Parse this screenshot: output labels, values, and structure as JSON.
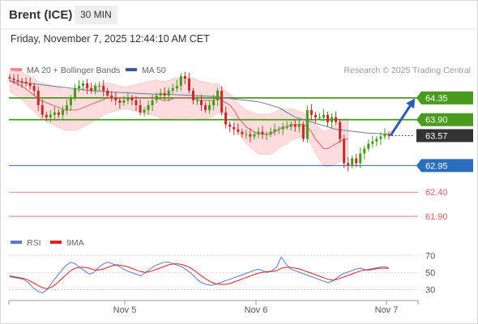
{
  "header": {
    "instrument": "Brent (ICE)",
    "interval": "30 MIN",
    "datetime": "Friday, November 7, 2025 12:44:10 AM CET"
  },
  "legend": {
    "bollinger_label": "MA 20 + Bollinger Bands",
    "ma50_label": "MA 50",
    "credit": "Research © 2025 Trading Central"
  },
  "rsi_legend": {
    "rsi_label": "RSI",
    "ma_label": "9MA"
  },
  "colors": {
    "up_candle": "#4a9a1e",
    "down_candle": "#c03030",
    "ma20": "#e06060",
    "ma50": "#6a7aa8",
    "bollinger_fill": "#fbd6d6",
    "resistance": "#4a9a1e",
    "pivot": "#2a6ebb",
    "support": "#e06060",
    "current_price": "#333333",
    "rsi": "#5a7ad6",
    "rsi_ma": "#dd2222"
  },
  "chart_data": [
    {
      "type": "candlestick",
      "title": "Brent (ICE)",
      "y_range": [
        61.65,
        64.75
      ],
      "x_labels": [
        "Nov 5",
        "Nov 6",
        "Nov 7"
      ],
      "levels": [
        {
          "value": 64.35,
          "label": "64.35",
          "kind": "resistance"
        },
        {
          "value": 63.9,
          "label": "63.90",
          "kind": "resistance"
        },
        {
          "value": 63.57,
          "label": "63.57",
          "kind": "current"
        },
        {
          "value": 62.95,
          "label": "62.95",
          "kind": "pivot"
        },
        {
          "value": 62.4,
          "label": "62.40",
          "kind": "support"
        },
        {
          "value": 61.9,
          "label": "61.90",
          "kind": "support"
        }
      ],
      "forecast_target": 64.35,
      "closes": [
        64.75,
        64.72,
        64.7,
        64.68,
        64.65,
        64.6,
        64.5,
        64.2,
        64.0,
        63.95,
        64.0,
        64.05,
        64.0,
        64.1,
        64.2,
        64.35,
        64.55,
        64.6,
        64.65,
        64.55,
        64.5,
        64.6,
        64.6,
        64.5,
        64.4,
        64.35,
        64.3,
        64.25,
        64.3,
        64.35,
        64.3,
        64.2,
        64.05,
        64.1,
        64.2,
        64.3,
        64.4,
        64.45,
        64.4,
        64.5,
        64.55,
        64.6,
        64.8,
        64.75,
        64.5,
        64.3,
        64.3,
        64.2,
        64.1,
        64.2,
        64.3,
        64.5,
        64.05,
        63.8,
        63.75,
        63.7,
        63.65,
        63.6,
        63.6,
        63.55,
        63.6,
        63.65,
        63.6,
        63.6,
        63.65,
        63.7,
        63.7,
        63.75,
        63.75,
        63.8,
        63.75,
        63.8,
        63.5,
        64.1,
        64.0,
        63.95,
        63.95,
        64.0,
        63.85,
        63.95,
        63.85,
        63.5,
        63.0,
        62.95,
        63.1,
        63.0,
        63.2,
        63.3,
        63.4,
        63.45,
        63.5,
        63.55,
        63.6,
        63.57
      ],
      "ma20": [
        64.7,
        64.65,
        64.6,
        64.5,
        64.4,
        64.3,
        64.25,
        64.2,
        64.15,
        64.1,
        64.1,
        64.1,
        64.15,
        64.2,
        64.25,
        64.3,
        64.35,
        64.35,
        64.35,
        64.35,
        64.35,
        64.35,
        64.35,
        64.35,
        64.35,
        64.3,
        64.3,
        64.35,
        64.35,
        64.35,
        64.35,
        64.3,
        64.3,
        64.3,
        64.3,
        64.35,
        64.3,
        64.25,
        64.2,
        64.1,
        63.95,
        63.85,
        63.75,
        63.7,
        63.65,
        63.6,
        63.6,
        63.6,
        63.6,
        63.65,
        63.7,
        63.75,
        63.75,
        63.8,
        63.8,
        63.8,
        63.8,
        63.75,
        63.65,
        63.5,
        63.4,
        63.3,
        63.3,
        63.35,
        63.4,
        63.45,
        63.5,
        63.5
      ],
      "ma20_x": [
        0,
        1.5,
        3,
        4.5,
        6,
        7.5,
        9,
        10.5,
        12,
        13.5,
        15,
        16.5,
        18,
        19.5,
        21,
        22.5,
        24,
        25.5,
        27,
        28.5,
        30,
        31.5,
        33,
        34.5,
        36,
        37.5,
        39,
        40.5,
        42,
        43.5,
        45,
        46.5,
        48,
        49,
        50,
        51,
        52,
        53,
        54,
        55,
        56,
        57,
        58,
        59,
        60,
        61,
        62,
        63,
        64,
        65,
        66,
        67,
        68,
        69,
        70,
        71,
        72,
        73,
        74,
        75,
        76,
        77,
        78,
        79,
        80,
        81,
        82,
        83
      ],
      "ma50": [
        64.7,
        64.65,
        64.6,
        64.55,
        64.5,
        64.47,
        64.45,
        64.43,
        64.42,
        64.4,
        64.38,
        64.36,
        64.34,
        64.32,
        64.3,
        64.28,
        64.25,
        64.2,
        64.15,
        64.05,
        63.95,
        63.9,
        63.85,
        63.8,
        63.75,
        63.7,
        63.68,
        63.66,
        63.64,
        63.62,
        63.6
      ],
      "ma50_x": [
        0,
        5,
        10,
        15,
        20,
        25,
        30,
        35,
        40,
        45,
        50,
        52,
        54,
        56,
        58,
        60,
        62,
        64,
        66,
        68,
        70,
        72,
        74,
        76,
        78,
        80,
        82,
        84,
        86,
        88,
        93
      ]
    },
    {
      "type": "line",
      "title": "RSI",
      "y_range": [
        20,
        75
      ],
      "y_ticks": [
        70,
        50,
        30
      ],
      "series": [
        {
          "name": "RSI",
          "values": [
            45,
            44,
            43,
            42,
            38,
            32,
            28,
            26,
            30,
            38,
            45,
            52,
            58,
            62,
            60,
            56,
            52,
            48,
            50,
            56,
            60,
            62,
            60,
            58,
            55,
            52,
            50,
            48,
            46,
            50,
            54,
            58,
            60,
            62,
            62,
            60,
            58,
            56,
            52,
            48,
            42,
            38,
            36,
            35,
            36,
            38,
            40,
            42,
            44,
            46,
            48,
            50,
            52,
            54,
            52,
            50,
            52,
            56,
            68,
            60,
            54,
            52,
            50,
            48,
            46,
            44,
            42,
            40,
            38,
            40,
            44,
            48,
            50,
            52,
            54,
            55,
            53,
            54,
            55,
            56,
            57,
            55
          ]
        },
        {
          "name": "9MA",
          "values": [
            46,
            45,
            44,
            43,
            41,
            38,
            35,
            32,
            31,
            33,
            37,
            42,
            47,
            52,
            55,
            56,
            56,
            55,
            53,
            53,
            54,
            56,
            58,
            59,
            58,
            57,
            55,
            53,
            51,
            50,
            51,
            53,
            55,
            57,
            59,
            60,
            60,
            59,
            57,
            54,
            50,
            46,
            42,
            39,
            37,
            36,
            36,
            37,
            39,
            41,
            43,
            45,
            47,
            49,
            50,
            51,
            51,
            52,
            55,
            56,
            56,
            55,
            54,
            52,
            50,
            48,
            46,
            44,
            42,
            41,
            42,
            44,
            46,
            48,
            50,
            52,
            53,
            53,
            54,
            55,
            55,
            55
          ]
        }
      ]
    }
  ]
}
